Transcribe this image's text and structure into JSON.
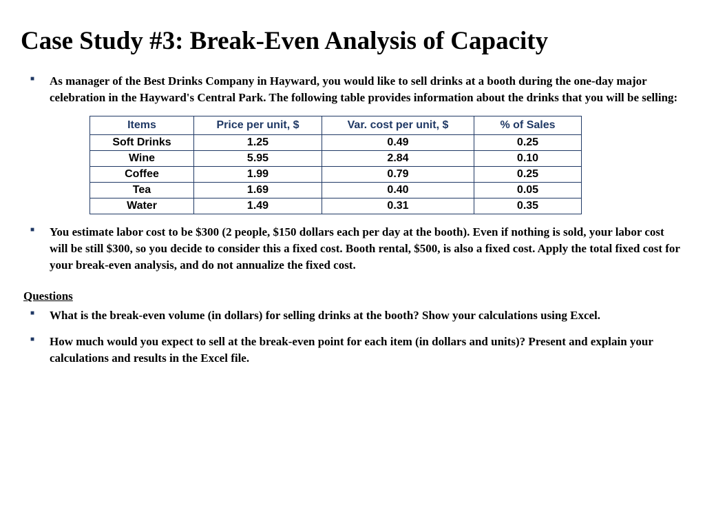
{
  "title": "Case Study #3: Break-Even Analysis of Capacity",
  "intro_bullets": [
    "As manager of the Best Drinks Company in Hayward, you would like to sell drinks at a booth during the one-day major celebration in the Hayward's Central Park. The following table provides information about the drinks that you will be selling:"
  ],
  "table": {
    "header_color": "#1f3864",
    "border_color": "#1f3864",
    "columns": [
      "Items",
      "Price per unit, $",
      "Var. cost per unit, $",
      "% of Sales"
    ],
    "rows": [
      [
        "Soft Drinks",
        "1.25",
        "0.49",
        "0.25"
      ],
      [
        "Wine",
        "5.95",
        "2.84",
        "0.10"
      ],
      [
        "Coffee",
        "1.99",
        "0.79",
        "0.25"
      ],
      [
        "Tea",
        "1.69",
        "0.40",
        "0.05"
      ],
      [
        "Water",
        "1.49",
        "0.31",
        "0.35"
      ]
    ]
  },
  "post_table_bullets": [
    "You estimate labor cost to be $300 (2 people, $150 dollars each per day at the booth). Even if nothing is sold, your labor cost will be still $300, so you decide to consider this a fixed cost. Booth rental, $500, is also a fixed cost. Apply the total fixed cost for your break-even analysis, and do not annualize the fixed cost."
  ],
  "questions_heading": "Questions",
  "question_bullets": [
    "What is the break-even volume (in dollars) for selling drinks at the booth? Show your calculations using Excel.",
    "How much would you expect to sell at the break-even point for each item (in dollars and units)? Present and explain your calculations and results in the Excel file."
  ],
  "styling": {
    "bullet_color": "#1f3864",
    "background_color": "#ffffff",
    "title_fontsize": 37,
    "body_fontsize": 17
  }
}
